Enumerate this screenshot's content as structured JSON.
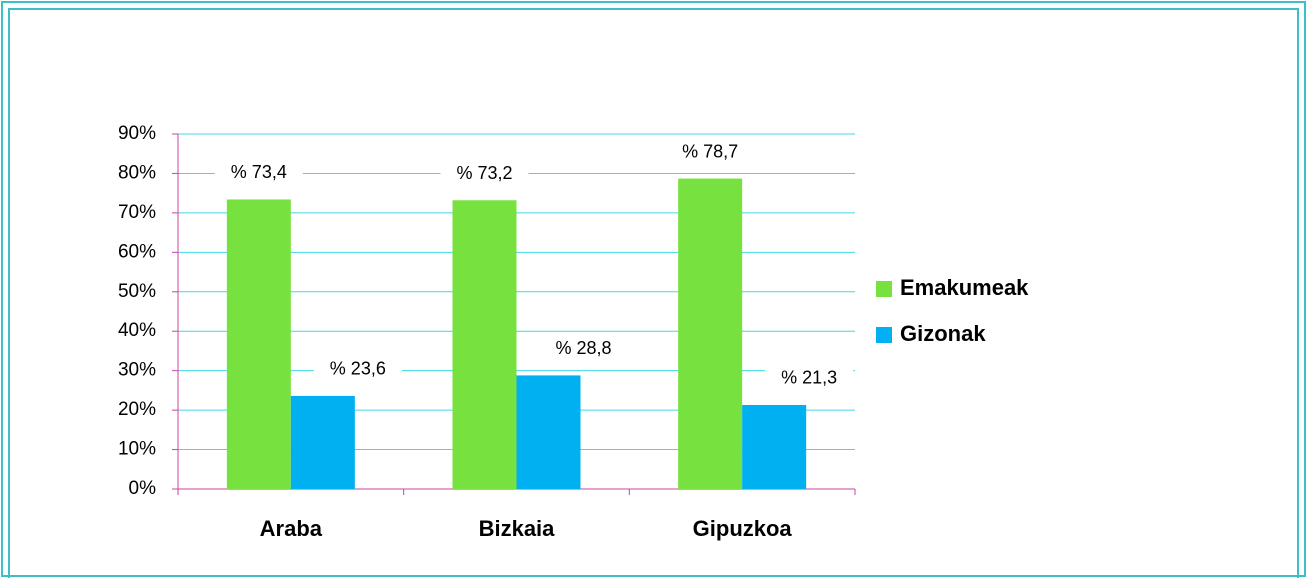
{
  "chart_data": {
    "type": "bar",
    "categories": [
      "Araba",
      "Bizkaia",
      "Gipuzkoa"
    ],
    "series": [
      {
        "name": "Emakumeak",
        "color": "#77e23f",
        "values": [
          73.4,
          73.2,
          78.7
        ],
        "value_labels": [
          "% 73,4",
          "% 73,2",
          "% 78,7"
        ]
      },
      {
        "name": "Gizonak",
        "color": "#00b0f0",
        "values": [
          23.6,
          28.8,
          21.3
        ],
        "value_labels": [
          "% 23,6",
          "% 28,8",
          "% 21,3"
        ]
      }
    ],
    "ylim": [
      0,
      90
    ],
    "yticks": [
      {
        "value": 0,
        "label": "0%"
      },
      {
        "value": 10,
        "label": "10%"
      },
      {
        "value": 20,
        "label": "20%"
      },
      {
        "value": 30,
        "label": "30%"
      },
      {
        "value": 40,
        "label": "40%"
      },
      {
        "value": 50,
        "label": "50%"
      },
      {
        "value": 60,
        "label": "60%"
      },
      {
        "value": 70,
        "label": "70%"
      },
      {
        "value": 80,
        "label": "80%"
      },
      {
        "value": 90,
        "label": "90%"
      }
    ],
    "grid": true,
    "legend": "right"
  }
}
